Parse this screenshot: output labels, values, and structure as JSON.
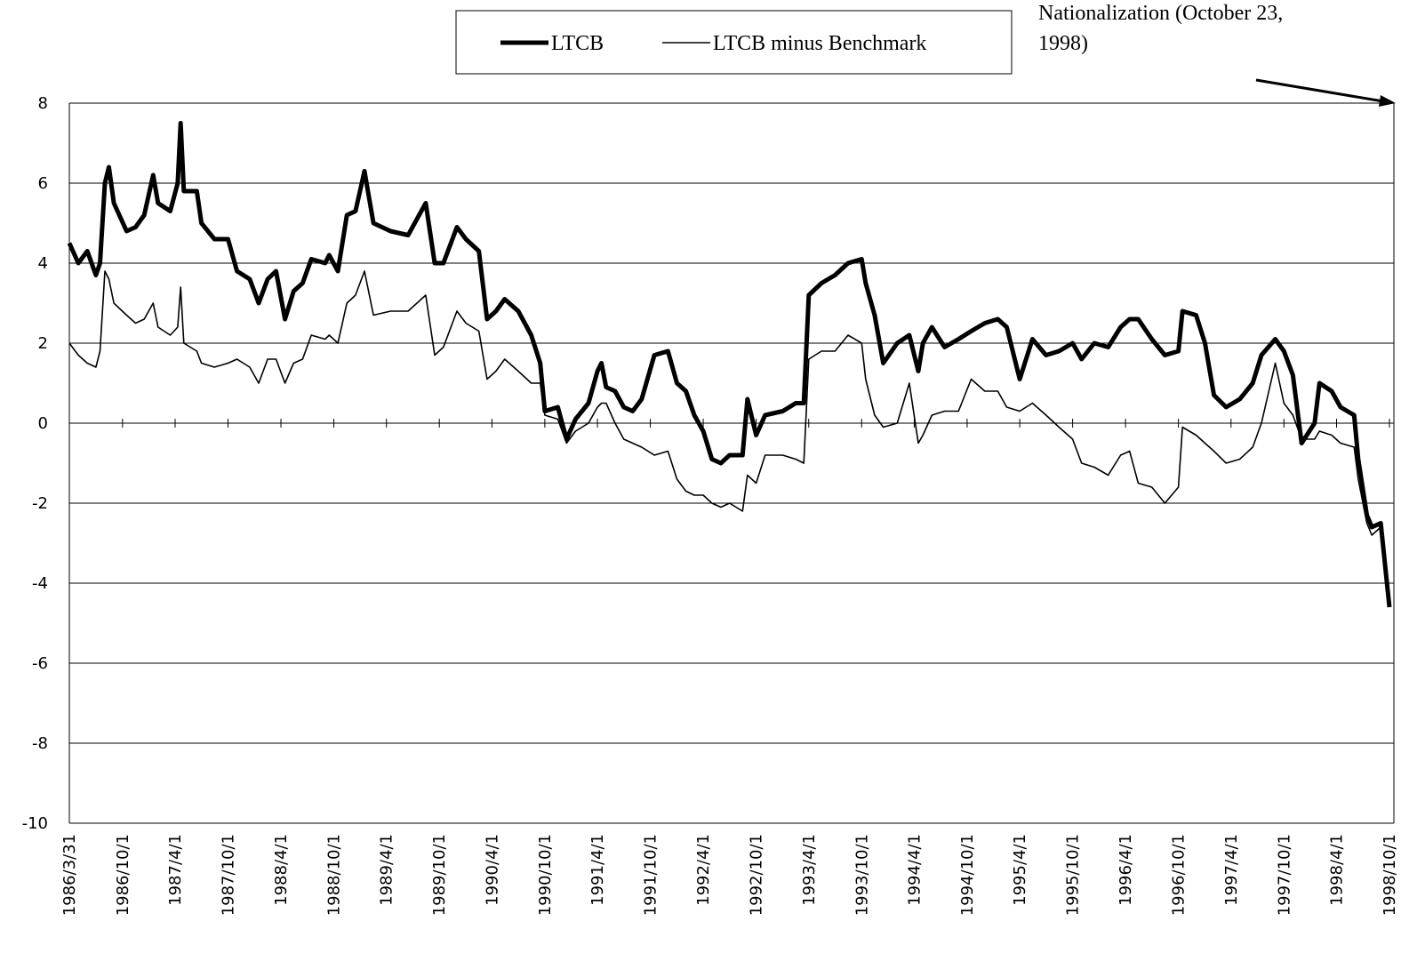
{
  "chart_data": {
    "type": "line",
    "annotation": "Nationalization (October 23, 1998)",
    "x": [
      "1986/3/31",
      "1986/5/1",
      "1986/6/1",
      "1986/7/1",
      "1986/7/15",
      "1986/8/1",
      "1986/8/15",
      "1986/9/1",
      "1986/10/15",
      "1986/11/15",
      "1986/12/15",
      "1987/1/15",
      "1987/2/1",
      "1987/3/15",
      "1987/4/10",
      "1987/4/20",
      "1987/5/1",
      "1987/6/15",
      "1987/7/1",
      "1987/8/15",
      "1987/10/1",
      "1987/11/1",
      "1987/12/15",
      "1988/1/15",
      "1988/2/15",
      "1988/3/15",
      "1988/4/15",
      "1988/5/15",
      "1988/6/15",
      "1988/7/15",
      "1988/9/1",
      "1988/9/15",
      "1988/10/15",
      "1988/11/15",
      "1988/12/15",
      "1989/1/15",
      "1989/2/15",
      "1989/4/15",
      "1989/6/15",
      "1989/8/15",
      "1989/9/15",
      "1989/10/15",
      "1989/12/1",
      "1990/1/1",
      "1990/2/15",
      "1990/3/15",
      "1990/4/15",
      "1990/5/15",
      "1990/7/1",
      "1990/8/15",
      "1990/9/15",
      "1990/10/1",
      "1990/11/15",
      "1990/12/15",
      "1991/1/15",
      "1991/3/1",
      "1991/4/1",
      "1991/4/15",
      "1991/5/1",
      "1991/6/1",
      "1991/7/1",
      "1991/8/1",
      "1991/9/1",
      "1991/10/15",
      "1991/12/1",
      "1992/1/1",
      "1992/2/1",
      "1992/3/1",
      "1992/4/1",
      "1992/5/1",
      "1992/6/1",
      "1992/7/1",
      "1992/8/15",
      "1992/9/1",
      "1992/10/1",
      "1992/11/1",
      "1993/1/1",
      "1993/2/15",
      "1993/3/15",
      "1993/4/1",
      "1993/5/15",
      "1993/7/1",
      "1993/8/15",
      "1993/10/1",
      "1993/10/15",
      "1993/11/15",
      "1993/12/15",
      "1994/2/1",
      "1994/3/15",
      "1994/4/15",
      "1994/5/1",
      "1994/6/1",
      "1994/7/15",
      "1994/9/1",
      "1994/10/15",
      "1994/12/1",
      "1995/1/15",
      "1995/2/15",
      "1995/4/1",
      "1995/5/15",
      "1995/7/1",
      "1995/8/15",
      "1995/10/1",
      "1995/11/1",
      "1995/12/15",
      "1996/2/1",
      "1996/3/15",
      "1996/4/15",
      "1996/5/15",
      "1996/7/1",
      "1996/8/15",
      "1996/10/1",
      "1996/10/15",
      "1996/12/1",
      "1997/1/1",
      "1997/2/1",
      "1997/3/15",
      "1997/5/1",
      "1997/6/15",
      "1997/7/15",
      "1997/9/1",
      "1997/10/1",
      "1997/11/1",
      "1997/12/1",
      "1998/1/15",
      "1998/2/1",
      "1998/3/15",
      "1998/4/15",
      "1998/6/1",
      "1998/6/15",
      "1998/7/15",
      "1998/8/1",
      "1998/9/1",
      "1998/10/1"
    ],
    "series": [
      {
        "name": "LTCB",
        "color": "#000000",
        "line_width": 5,
        "values": [
          4.5,
          4.0,
          4.3,
          3.7,
          4.0,
          6.0,
          6.4,
          5.5,
          4.8,
          4.9,
          5.2,
          6.2,
          5.5,
          5.3,
          6.0,
          7.5,
          5.8,
          5.8,
          5.0,
          4.6,
          4.6,
          3.8,
          3.6,
          3.0,
          3.6,
          3.8,
          2.6,
          3.3,
          3.5,
          4.1,
          4.0,
          4.2,
          3.8,
          5.2,
          5.3,
          6.3,
          5.0,
          4.8,
          4.7,
          5.5,
          4.0,
          4.0,
          4.9,
          4.6,
          4.3,
          2.6,
          2.8,
          3.1,
          2.8,
          2.2,
          1.5,
          0.3,
          0.4,
          -0.4,
          0.1,
          0.5,
          1.3,
          1.5,
          0.9,
          0.8,
          0.4,
          0.3,
          0.6,
          1.7,
          1.8,
          1.0,
          0.8,
          0.2,
          -0.2,
          -0.9,
          -1.0,
          -0.8,
          -0.8,
          0.6,
          -0.3,
          0.2,
          0.3,
          0.5,
          0.5,
          3.2,
          3.5,
          3.7,
          4.0,
          4.1,
          3.5,
          2.7,
          1.5,
          2.0,
          2.2,
          1.3,
          2.0,
          2.4,
          1.9,
          2.1,
          2.3,
          2.5,
          2.6,
          2.4,
          1.1,
          2.1,
          1.7,
          1.8,
          2.0,
          1.6,
          2.0,
          1.9,
          2.4,
          2.6,
          2.6,
          2.1,
          1.7,
          1.8,
          2.8,
          2.7,
          2.0,
          0.7,
          0.4,
          0.6,
          1.0,
          1.7,
          2.1,
          1.8,
          1.2,
          -0.5,
          0.0,
          1.0,
          0.8,
          0.4,
          0.2,
          -0.9,
          -2.3,
          -2.6,
          -2.5,
          -4.6
        ]
      },
      {
        "name": "LTCB minus Benchmark",
        "color": "#000000",
        "line_width": 1.6,
        "values": [
          2.0,
          1.7,
          1.5,
          1.4,
          1.8,
          3.8,
          3.6,
          3.0,
          2.7,
          2.5,
          2.6,
          3.0,
          2.4,
          2.2,
          2.4,
          3.4,
          2.0,
          1.8,
          1.5,
          1.4,
          1.5,
          1.6,
          1.4,
          1.0,
          1.6,
          1.6,
          1.0,
          1.5,
          1.6,
          2.2,
          2.1,
          2.2,
          2.0,
          3.0,
          3.2,
          3.8,
          2.7,
          2.8,
          2.8,
          3.2,
          1.7,
          1.9,
          2.8,
          2.5,
          2.3,
          1.1,
          1.3,
          1.6,
          1.3,
          1.0,
          1.0,
          0.2,
          0.1,
          -0.5,
          -0.2,
          0.0,
          0.4,
          0.5,
          0.5,
          0.0,
          -0.4,
          -0.5,
          -0.6,
          -0.8,
          -0.7,
          -1.4,
          -1.7,
          -1.8,
          -1.8,
          -2.0,
          -2.1,
          -2.0,
          -2.2,
          -1.3,
          -1.5,
          -0.8,
          -0.8,
          -0.9,
          -1.0,
          1.6,
          1.8,
          1.8,
          2.2,
          2.0,
          1.1,
          0.2,
          -0.1,
          0.0,
          1.0,
          -0.5,
          -0.3,
          0.2,
          0.3,
          0.3,
          1.1,
          0.8,
          0.8,
          0.4,
          0.3,
          0.5,
          0.2,
          -0.1,
          -0.4,
          -1.0,
          -1.1,
          -1.3,
          -0.8,
          -0.7,
          -1.5,
          -1.6,
          -2.0,
          -1.6,
          -0.1,
          -0.3,
          -0.5,
          -0.7,
          -1.0,
          -0.9,
          -0.6,
          0.0,
          1.5,
          0.5,
          0.2,
          -0.4,
          -0.4,
          -0.2,
          -0.3,
          -0.5,
          -0.6,
          -1.4,
          -2.5,
          -2.8,
          -2.6,
          -4.3
        ]
      }
    ],
    "xlim": [
      "1986/3/31",
      "1998/10/1"
    ],
    "xticks": [
      "1986/3/31",
      "1986/10/1",
      "1987/4/1",
      "1987/10/1",
      "1988/4/1",
      "1988/10/1",
      "1989/4/1",
      "1989/10/1",
      "1990/4/1",
      "1990/10/1",
      "1991/4/1",
      "1991/10/1",
      "1992/4/1",
      "1992/10/1",
      "1993/4/1",
      "1993/10/1",
      "1994/4/1",
      "1994/10/1",
      "1995/4/1",
      "1995/10/1",
      "1996/4/1",
      "1996/10/1",
      "1997/4/1",
      "1997/10/1",
      "1998/4/1",
      "1998/10/1"
    ],
    "ylim": [
      -10,
      8
    ],
    "yticks": [
      8,
      6,
      4,
      2,
      0,
      -2,
      -4,
      -6,
      -8,
      -10
    ],
    "grid": true
  }
}
